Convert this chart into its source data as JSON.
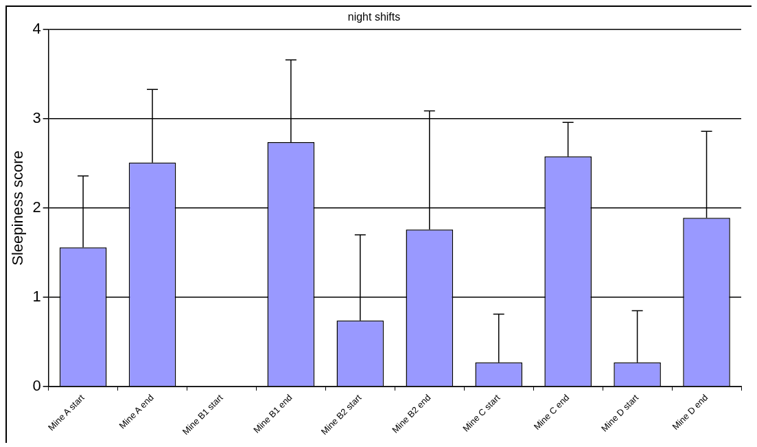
{
  "chart_data": {
    "type": "bar",
    "title": "night shifts",
    "ylabel": "Sleepiness score",
    "categories": [
      "Mine A start",
      "Mine A end",
      "Mine B1 start",
      "Mine B1 end",
      "Mine B2 start",
      "Mine B2 end",
      "Mine C start",
      "Mine C end",
      "Mine D start",
      "Mine D end"
    ],
    "values": [
      1.56,
      2.51,
      null,
      2.74,
      0.74,
      1.76,
      0.27,
      2.58,
      0.27,
      1.89
    ],
    "errors": [
      [
        1.56,
        2.36
      ],
      [
        2.51,
        3.33
      ],
      null,
      [
        2.74,
        3.66
      ],
      [
        0.74,
        1.7
      ],
      [
        1.76,
        3.09
      ],
      [
        0.27,
        0.81
      ],
      [
        2.58,
        2.96
      ],
      [
        0.27,
        0.85
      ],
      [
        1.89,
        2.86
      ]
    ],
    "color": "#9999ff",
    "ylim": [
      0,
      4
    ],
    "yticks": [
      0,
      1,
      2,
      3,
      4
    ],
    "grid": "y",
    "legend": false
  }
}
